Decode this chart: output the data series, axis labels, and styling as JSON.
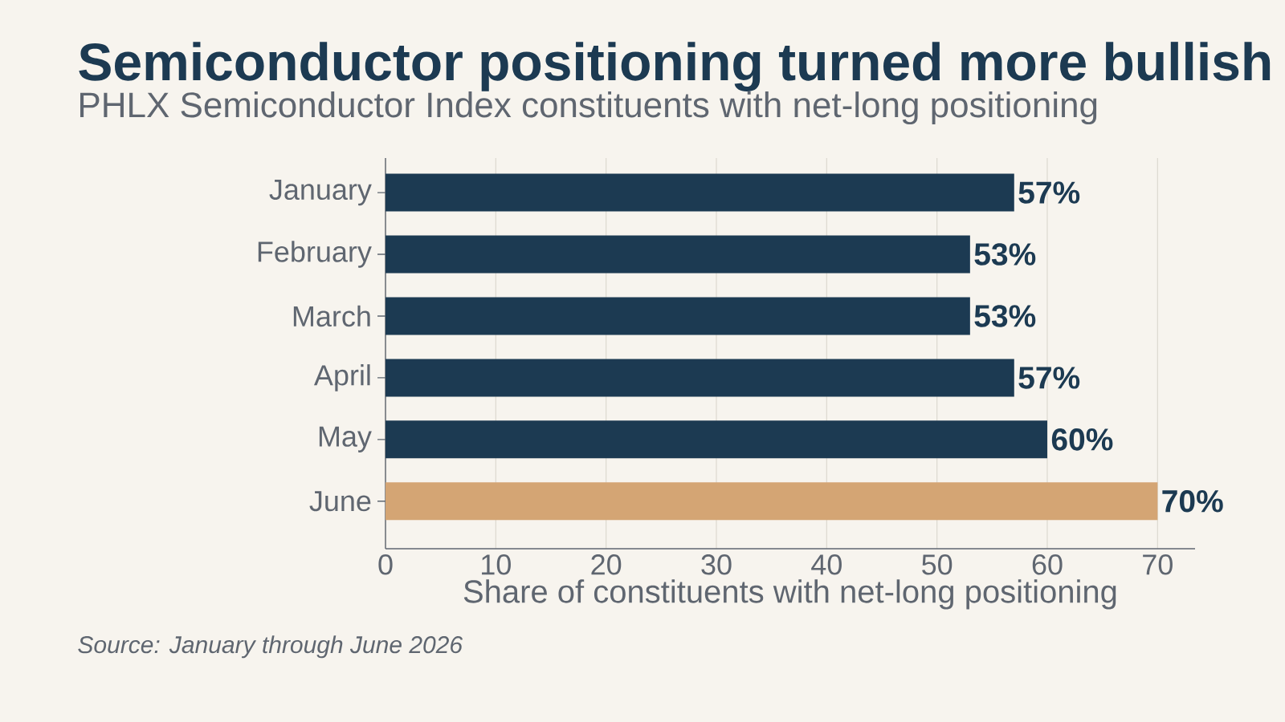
{
  "chart_data": {
    "type": "bar",
    "orientation": "horizontal",
    "title": "Semiconductor positioning turned more bullish",
    "subtitle": "PHLX Semiconductor Index constituents with net-long positioning",
    "xlabel": "Share of constituents with net-long positioning",
    "categories": [
      "January",
      "February",
      "March",
      "April",
      "May",
      "June"
    ],
    "values": [
      57,
      53,
      53,
      57,
      60,
      70
    ],
    "colors": [
      "#1c3a52",
      "#1c3a52",
      "#1c3a52",
      "#1c3a52",
      "#1c3a52",
      "#d4a574"
    ],
    "value_labels": [
      "57%",
      "53%",
      "53%",
      "57%",
      "60%",
      "70%"
    ],
    "xlim": [
      0,
      73.4
    ],
    "xticks": [
      0,
      10,
      20,
      30,
      40,
      50,
      60,
      70
    ],
    "grid": "x",
    "annotations": [
      "Source: January through June 2026"
    ]
  }
}
